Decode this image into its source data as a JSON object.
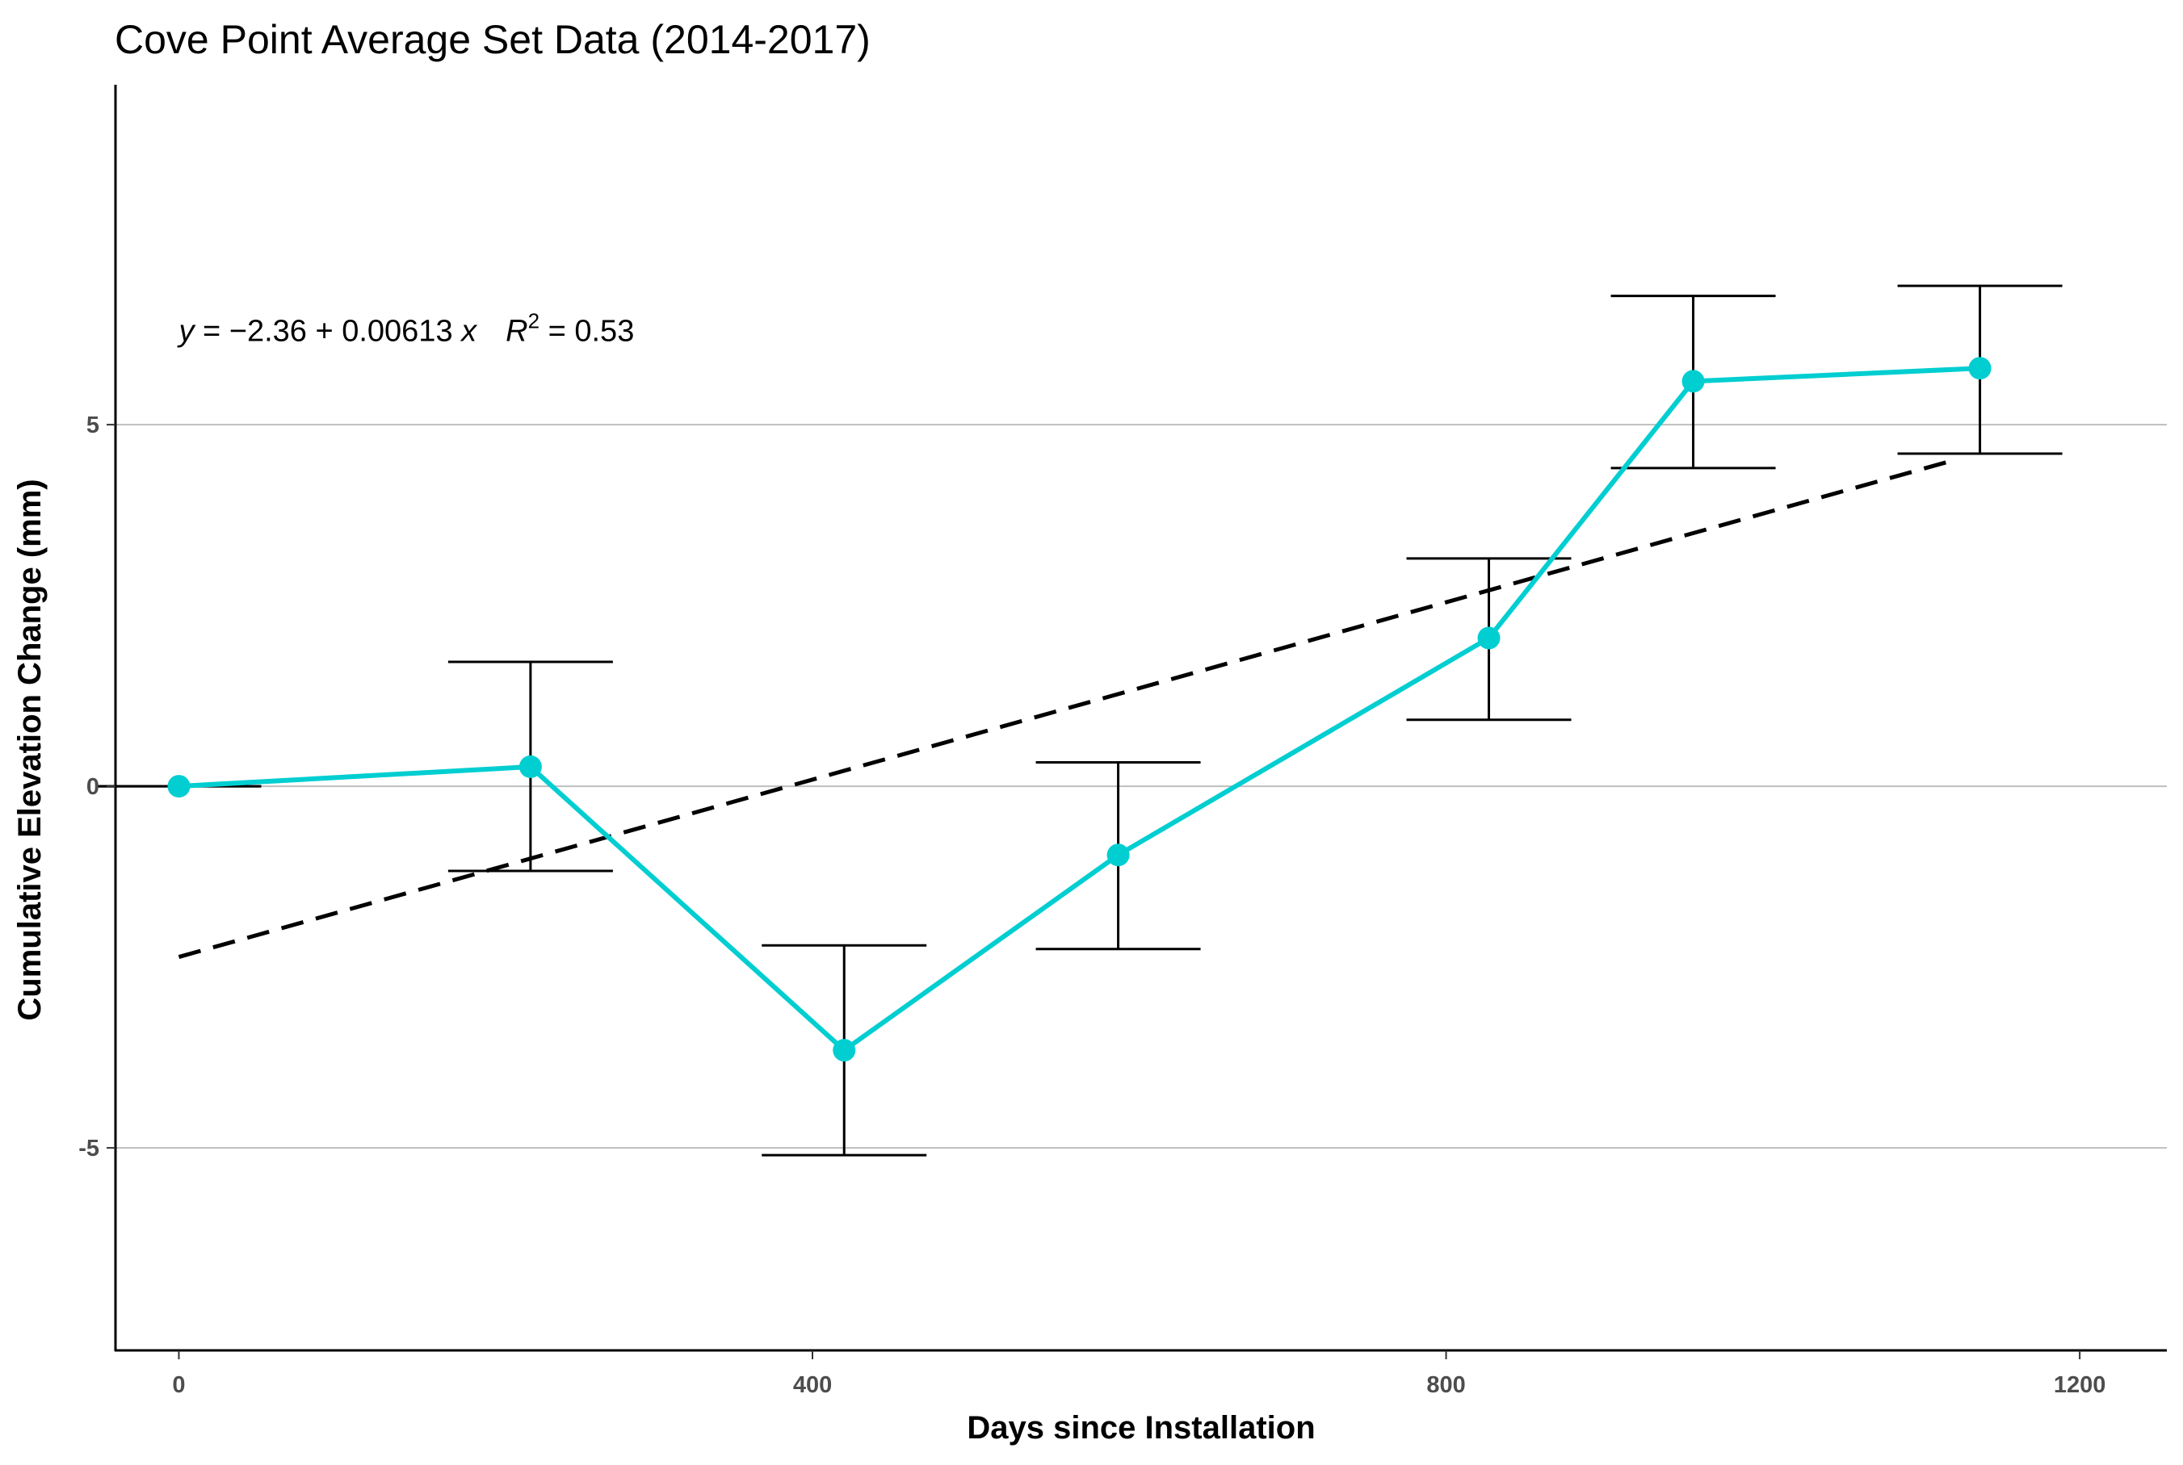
{
  "chart_data": {
    "type": "line",
    "title": "Cove Point Average Set Data (2014-2017)",
    "xlabel": "Days since Installation",
    "ylabel": "Cumulative Elevation Change (mm)",
    "xlim": [
      -40,
      1255
    ],
    "ylim": [
      -7.8,
      9.7
    ],
    "x_ticks": [
      0,
      400,
      800,
      1200
    ],
    "x_tick_labels": [
      "0",
      "400",
      "800",
      "1200"
    ],
    "y_ticks": [
      -5,
      0,
      5
    ],
    "y_tick_labels": [
      "-5",
      "0",
      "5"
    ],
    "grid": "horizontal major lines only",
    "series": [
      {
        "color": "#00CED1",
        "x": [
          0,
          222,
          420,
          593,
          827,
          956,
          1137
        ],
        "y": [
          0.0,
          0.27,
          -3.65,
          -0.95,
          2.05,
          5.6,
          5.78
        ],
        "error_lower": [
          0.0,
          -1.17,
          -5.1,
          -2.25,
          0.92,
          4.4,
          4.6
        ],
        "error_upper": [
          0.0,
          1.72,
          -2.2,
          0.33,
          3.15,
          6.78,
          6.92
        ]
      }
    ],
    "trendline": {
      "style": "dashed",
      "color": "#000000",
      "intercept": -2.36,
      "slope": 0.00613,
      "x_range": [
        0,
        1120
      ]
    },
    "annotation": {
      "y_var": "y",
      "eq_body": " = −2.36 + 0.00613 ",
      "x_var": "x",
      "r_var": "R",
      "r_exp": "2",
      "r_val": " = 0.53",
      "anchor_x": 0,
      "anchor_y": 6.3
    }
  }
}
